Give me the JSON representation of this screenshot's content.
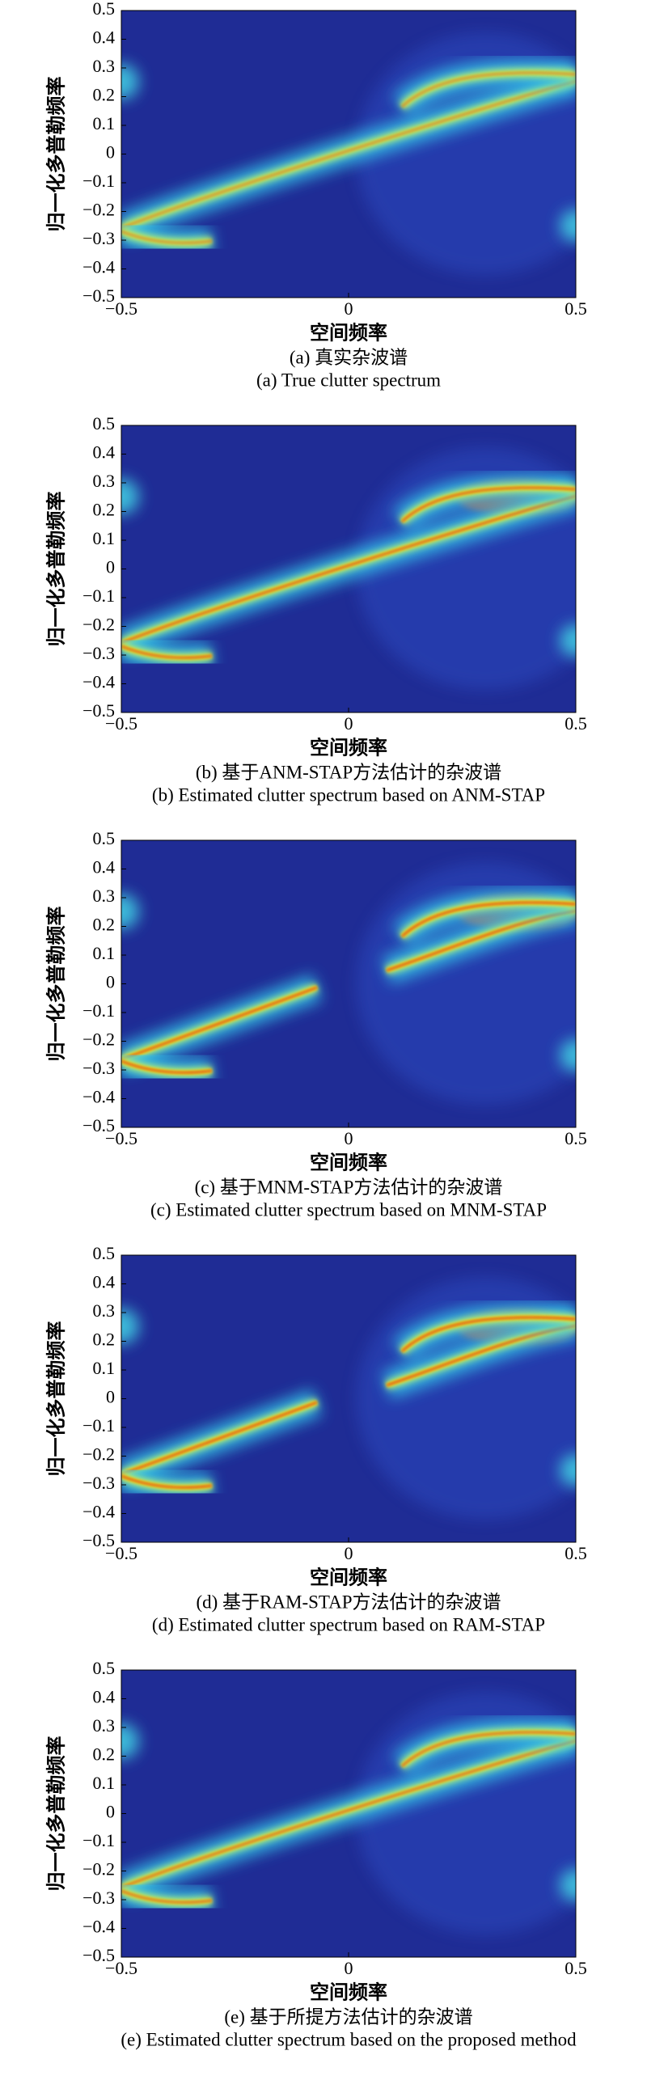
{
  "chart_data": [
    {
      "type": "heatmap",
      "title": "(a) 真实杂波谱",
      "subtitle": "(a) True clutter spectrum",
      "xlabel": "空间频率",
      "ylabel": "归一化多普勒频率",
      "xlim": [
        -0.5,
        0.5
      ],
      "ylim": [
        -0.5,
        0.5
      ],
      "xticks": [
        {
          "value": -0.5,
          "label": "−0.5"
        },
        0,
        0.5
      ],
      "yticks": [
        0.5,
        0.4,
        0.3,
        0.2,
        0.1,
        0,
        {
          "value": -0.1,
          "label": "−0.1"
        },
        {
          "value": -0.2,
          "label": "−0.2"
        },
        {
          "value": -0.3,
          "label": "−0.3"
        },
        {
          "value": -0.4,
          "label": "−0.4"
        },
        {
          "value": -0.5,
          "label": "−0.5"
        }
      ]
    },
    {
      "type": "heatmap",
      "title": "(b) 基于ANM-STAP方法估计的杂波谱",
      "subtitle": "(b) Estimated clutter spectrum based on ANM-STAP",
      "xlabel": "空间频率",
      "ylabel": "归一化多普勒频率",
      "xlim": [
        -0.5,
        0.5
      ],
      "ylim": [
        -0.5,
        0.5
      ],
      "xticks": [
        {
          "value": -0.5,
          "label": "−0.5"
        },
        0,
        0.5
      ],
      "yticks": [
        0.5,
        0.4,
        0.3,
        0.2,
        0.1,
        0,
        {
          "value": -0.1,
          "label": "−0.1"
        },
        {
          "value": -0.2,
          "label": "−0.2"
        },
        {
          "value": -0.3,
          "label": "−0.3"
        },
        {
          "value": -0.4,
          "label": "−0.4"
        },
        {
          "value": -0.5,
          "label": "−0.5"
        }
      ]
    },
    {
      "type": "heatmap",
      "title": "(c) 基于MNM-STAP方法估计的杂波谱",
      "subtitle": "(c) Estimated clutter spectrum based on MNM-STAP",
      "xlabel": "空间频率",
      "ylabel": "归一化多普勒频率",
      "xlim": [
        -0.5,
        0.5
      ],
      "ylim": [
        -0.5,
        0.5
      ],
      "xticks": [
        {
          "value": -0.5,
          "label": "−0.5"
        },
        0,
        0.5
      ],
      "yticks": [
        0.5,
        0.4,
        0.3,
        0.2,
        0.1,
        0,
        {
          "value": -0.1,
          "label": "−0.1"
        },
        {
          "value": -0.2,
          "label": "−0.2"
        },
        {
          "value": -0.3,
          "label": "−0.3"
        },
        {
          "value": -0.4,
          "label": "−0.4"
        },
        {
          "value": -0.5,
          "label": "−0.5"
        }
      ]
    },
    {
      "type": "heatmap",
      "title": "(d) 基于RAM-STAP方法估计的杂波谱",
      "subtitle": "(d) Estimated clutter spectrum based on RAM-STAP",
      "xlabel": "空间频率",
      "ylabel": "归一化多普勒频率",
      "xlim": [
        -0.5,
        0.5
      ],
      "ylim": [
        -0.5,
        0.5
      ],
      "xticks": [
        {
          "value": -0.5,
          "label": "−0.5"
        },
        0,
        0.5
      ],
      "yticks": [
        0.5,
        0.4,
        0.3,
        0.2,
        0.1,
        0,
        {
          "value": -0.1,
          "label": "−0.1"
        },
        {
          "value": -0.2,
          "label": "−0.2"
        },
        {
          "value": -0.3,
          "label": "−0.3"
        },
        {
          "value": -0.4,
          "label": "−0.4"
        },
        {
          "value": -0.5,
          "label": "−0.5"
        }
      ]
    },
    {
      "type": "heatmap",
      "title": "(e) 基于所提方法估计的杂波谱",
      "subtitle": "(e) Estimated clutter spectrum based on the proposed method",
      "xlabel": "空间频率",
      "ylabel": "归一化多普勒频率",
      "xlim": [
        -0.5,
        0.5
      ],
      "ylim": [
        -0.5,
        0.5
      ],
      "xticks": [
        {
          "value": -0.5,
          "label": "−0.5"
        },
        0,
        0.5
      ],
      "yticks": [
        0.5,
        0.4,
        0.3,
        0.2,
        0.1,
        0,
        {
          "value": -0.1,
          "label": "−0.1"
        },
        {
          "value": -0.2,
          "label": "−0.2"
        },
        {
          "value": -0.3,
          "label": "−0.3"
        },
        {
          "value": -0.4,
          "label": "−0.4"
        },
        {
          "value": -0.5,
          "label": "−0.5"
        }
      ]
    }
  ]
}
